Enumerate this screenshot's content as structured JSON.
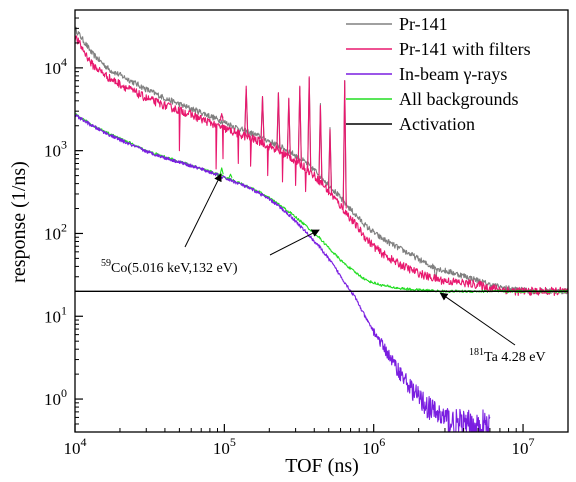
{
  "chart_data": {
    "type": "line",
    "xlabel": "TOF (ns)",
    "ylabel": "response (1/ns)",
    "xscale": "log",
    "yscale": "log",
    "xlim": [
      10000,
      20000000
    ],
    "ylim": [
      0.4,
      50000
    ],
    "grid": false,
    "legend_position": "top-right",
    "x_ticks": [
      {
        "value": 10000,
        "base": "10",
        "exp": "4"
      },
      {
        "value": 100000,
        "base": "10",
        "exp": "5"
      },
      {
        "value": 1000000,
        "base": "10",
        "exp": "6"
      },
      {
        "value": 10000000,
        "base": "10",
        "exp": "7"
      }
    ],
    "y_ticks": [
      {
        "value": 1,
        "base": "10",
        "exp": "0"
      },
      {
        "value": 10,
        "base": "10",
        "exp": "1"
      },
      {
        "value": 100,
        "base": "10",
        "exp": "2"
      },
      {
        "value": 1000,
        "base": "10",
        "exp": "3"
      },
      {
        "value": 10000,
        "base": "10",
        "exp": "4"
      }
    ],
    "series": [
      {
        "name": "Pr-141",
        "color": "#808080",
        "points": [
          [
            10000,
            30000
          ],
          [
            13000,
            15000
          ],
          [
            17000,
            9500
          ],
          [
            22000,
            7500
          ],
          [
            30000,
            5500
          ],
          [
            40000,
            4300
          ],
          [
            55000,
            3400
          ],
          [
            70000,
            2900
          ],
          [
            85000,
            2500
          ],
          [
            100000,
            2200
          ],
          [
            130000,
            1800
          ],
          [
            170000,
            1500
          ],
          [
            220000,
            1200
          ],
          [
            280000,
            950
          ],
          [
            350000,
            720
          ],
          [
            430000,
            520
          ],
          [
            520000,
            360
          ],
          [
            620000,
            250
          ],
          [
            750000,
            170
          ],
          [
            900000,
            120
          ],
          [
            1100000,
            90
          ],
          [
            1400000,
            70
          ],
          [
            1800000,
            55
          ],
          [
            2300000,
            42
          ],
          [
            2900000,
            36
          ],
          [
            3500000,
            33
          ],
          [
            4200000,
            30
          ],
          [
            5000000,
            27
          ],
          [
            6000000,
            24
          ],
          [
            7500000,
            22
          ],
          [
            9000000,
            21
          ],
          [
            12000000,
            20
          ],
          [
            16000000,
            20
          ],
          [
            20000000,
            20
          ]
        ],
        "peaks": [
          [
            96000,
            2500,
            2700
          ],
          [
            140000,
            1700,
            5500
          ],
          [
            180000,
            1400,
            4500
          ],
          [
            230000,
            1100,
            5000
          ],
          [
            270000,
            900,
            4200
          ],
          [
            320000,
            800,
            5800
          ],
          [
            370000,
            650,
            7500
          ],
          [
            440000,
            470,
            3700
          ],
          [
            510000,
            340,
            1900
          ],
          [
            640000,
            230,
            7000
          ],
          [
            2600000,
            38,
            27
          ]
        ]
      },
      {
        "name": "Pr-141 with filters",
        "color": "#e8186e",
        "points": [
          [
            10000,
            24000
          ],
          [
            13000,
            11000
          ],
          [
            17000,
            7500
          ],
          [
            22000,
            5800
          ],
          [
            30000,
            4300
          ],
          [
            40000,
            3500
          ],
          [
            55000,
            2900
          ],
          [
            70000,
            2400
          ],
          [
            85000,
            2100
          ],
          [
            100000,
            1850
          ],
          [
            130000,
            1550
          ],
          [
            170000,
            1300
          ],
          [
            220000,
            1050
          ],
          [
            280000,
            820
          ],
          [
            350000,
            620
          ],
          [
            430000,
            440
          ],
          [
            520000,
            300
          ],
          [
            620000,
            200
          ],
          [
            750000,
            130
          ],
          [
            900000,
            85
          ],
          [
            1100000,
            60
          ],
          [
            1400000,
            45
          ],
          [
            1800000,
            36
          ],
          [
            2300000,
            30
          ],
          [
            2900000,
            27
          ],
          [
            3500000,
            26
          ],
          [
            4200000,
            25
          ],
          [
            5000000,
            24
          ],
          [
            6000000,
            22
          ],
          [
            7500000,
            21
          ],
          [
            9000000,
            20
          ],
          [
            12000000,
            20
          ],
          [
            16000000,
            20
          ],
          [
            20000000,
            20
          ]
        ],
        "dips": [
          [
            50000,
            1000
          ],
          [
            88000,
            600
          ],
          [
            98000,
            800
          ],
          [
            124000,
            700
          ],
          [
            150000,
            650
          ],
          [
            195000,
            500
          ],
          [
            245000,
            420
          ],
          [
            300000,
            380
          ],
          [
            350000,
            320
          ]
        ],
        "peaks": [
          [
            96000,
            2300,
            2800
          ],
          [
            140000,
            1500,
            6000
          ],
          [
            180000,
            1250,
            4500
          ],
          [
            230000,
            1000,
            5000
          ],
          [
            270000,
            800,
            4300
          ],
          [
            320000,
            700,
            6000
          ],
          [
            370000,
            560,
            7800
          ],
          [
            440000,
            400,
            3500
          ],
          [
            510000,
            290,
            1800
          ],
          [
            640000,
            200,
            7000
          ],
          [
            2600000,
            30,
            27
          ]
        ]
      },
      {
        "name": "In-beam γ-rays",
        "color": "#7a1ee0",
        "points": [
          [
            10000,
            2700
          ],
          [
            13000,
            2000
          ],
          [
            17000,
            1550
          ],
          [
            22000,
            1250
          ],
          [
            30000,
            980
          ],
          [
            40000,
            820
          ],
          [
            55000,
            690
          ],
          [
            70000,
            600
          ],
          [
            85000,
            530
          ],
          [
            100000,
            470
          ],
          [
            130000,
            390
          ],
          [
            170000,
            310
          ],
          [
            220000,
            230
          ],
          [
            280000,
            160
          ],
          [
            350000,
            105
          ],
          [
            430000,
            70
          ],
          [
            520000,
            45
          ],
          [
            620000,
            28
          ],
          [
            750000,
            17
          ],
          [
            900000,
            9
          ],
          [
            1100000,
            5
          ],
          [
            1400000,
            2.5
          ],
          [
            1800000,
            1.3
          ],
          [
            2300000,
            0.8
          ],
          [
            2900000,
            0.6
          ],
          [
            3500000,
            0.5
          ],
          [
            4200000,
            0.46
          ],
          [
            5000000,
            0.44
          ],
          [
            6000000,
            0.43
          ]
        ]
      },
      {
        "name": "All backgrounds",
        "color": "#22dd22",
        "points": [
          [
            10000,
            2750
          ],
          [
            13000,
            2050
          ],
          [
            17000,
            1600
          ],
          [
            22000,
            1300
          ],
          [
            30000,
            1000
          ],
          [
            40000,
            840
          ],
          [
            55000,
            700
          ],
          [
            70000,
            610
          ],
          [
            85000,
            540
          ],
          [
            100000,
            480
          ],
          [
            130000,
            400
          ],
          [
            170000,
            320
          ],
          [
            220000,
            240
          ],
          [
            280000,
            175
          ],
          [
            350000,
            125
          ],
          [
            430000,
            90
          ],
          [
            520000,
            62
          ],
          [
            620000,
            45
          ],
          [
            750000,
            34
          ],
          [
            900000,
            27
          ],
          [
            1100000,
            24
          ],
          [
            1400000,
            22
          ],
          [
            1800000,
            21
          ],
          [
            2300000,
            20.5
          ],
          [
            2900000,
            20
          ],
          [
            4000000,
            20
          ],
          [
            6000000,
            20
          ],
          [
            9000000,
            20
          ],
          [
            13000000,
            20
          ],
          [
            20000000,
            20
          ]
        ],
        "peaks": [
          [
            96000,
            520,
            620
          ],
          [
            110000,
            470,
            520
          ]
        ]
      },
      {
        "name": "Activation",
        "color": "#000000",
        "points": [
          [
            10000,
            20
          ],
          [
            20000000,
            20
          ]
        ]
      }
    ],
    "annotations": [
      {
        "id": "co59",
        "sup": "59",
        "text": "Co(5.016 keV,132 eV)"
      },
      {
        "id": "ta181",
        "sup": "181",
        "text": "Ta 4.28 eV"
      }
    ]
  }
}
